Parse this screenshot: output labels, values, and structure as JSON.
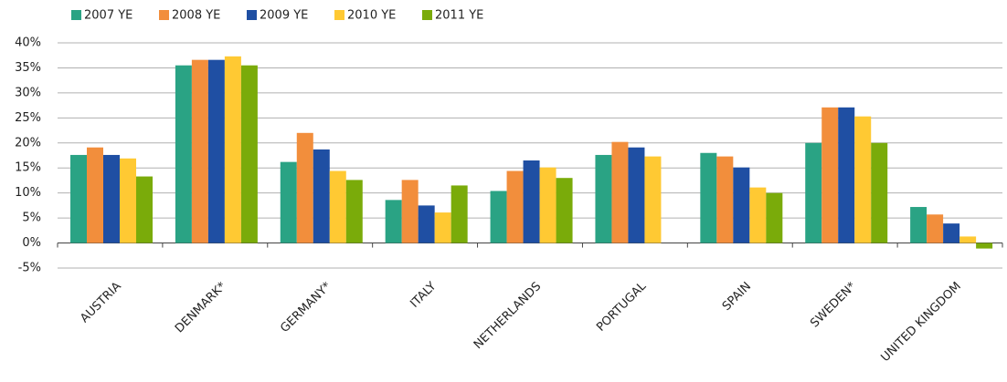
{
  "chart_data": {
    "type": "bar",
    "categories": [
      "AUSTRIA",
      "DENMARK*",
      "GERMANY*",
      "ITALY",
      "NETHERLANDS",
      "PORTUGAL",
      "SPAIN",
      "SWEDEN*",
      "UNITED KINGDOM"
    ],
    "series": [
      {
        "name": "2007 YE",
        "color": "#2aa384",
        "values": [
          17.6,
          35.5,
          16.2,
          8.6,
          10.4,
          17.6,
          18.0,
          20.0,
          7.2
        ]
      },
      {
        "name": "2008 YE",
        "color": "#f28e3c",
        "values": [
          19.1,
          36.6,
          22.0,
          12.6,
          14.4,
          20.2,
          17.3,
          27.1,
          5.7
        ]
      },
      {
        "name": "2009 YE",
        "color": "#1f4fa3",
        "values": [
          17.6,
          36.6,
          18.7,
          7.5,
          16.5,
          19.1,
          15.1,
          27.1,
          3.9
        ]
      },
      {
        "name": "2010 YE",
        "color": "#ffc933",
        "values": [
          16.9,
          37.3,
          14.4,
          6.1,
          15.1,
          17.3,
          11.1,
          25.3,
          1.3
        ]
      },
      {
        "name": "2011 YE",
        "color": "#7aab0a",
        "values": [
          13.3,
          35.5,
          12.6,
          11.5,
          13.0,
          null,
          10.0,
          20.0,
          -1.1
        ]
      }
    ],
    "ylim": [
      -5,
      40
    ],
    "yticks": [
      {
        "value": -5,
        "label": "-5%"
      },
      {
        "value": 0,
        "label": "0%"
      },
      {
        "value": 5,
        "label": "5%"
      },
      {
        "value": 10,
        "label": "10%"
      },
      {
        "value": 15,
        "label": "15%"
      },
      {
        "value": 20,
        "label": "20%"
      },
      {
        "value": 25,
        "label": "25%"
      },
      {
        "value": 30,
        "label": "30%"
      },
      {
        "value": 35,
        "label": "35%"
      },
      {
        "value": 40,
        "label": "40%"
      }
    ],
    "grid": true,
    "legend": "top-left"
  }
}
